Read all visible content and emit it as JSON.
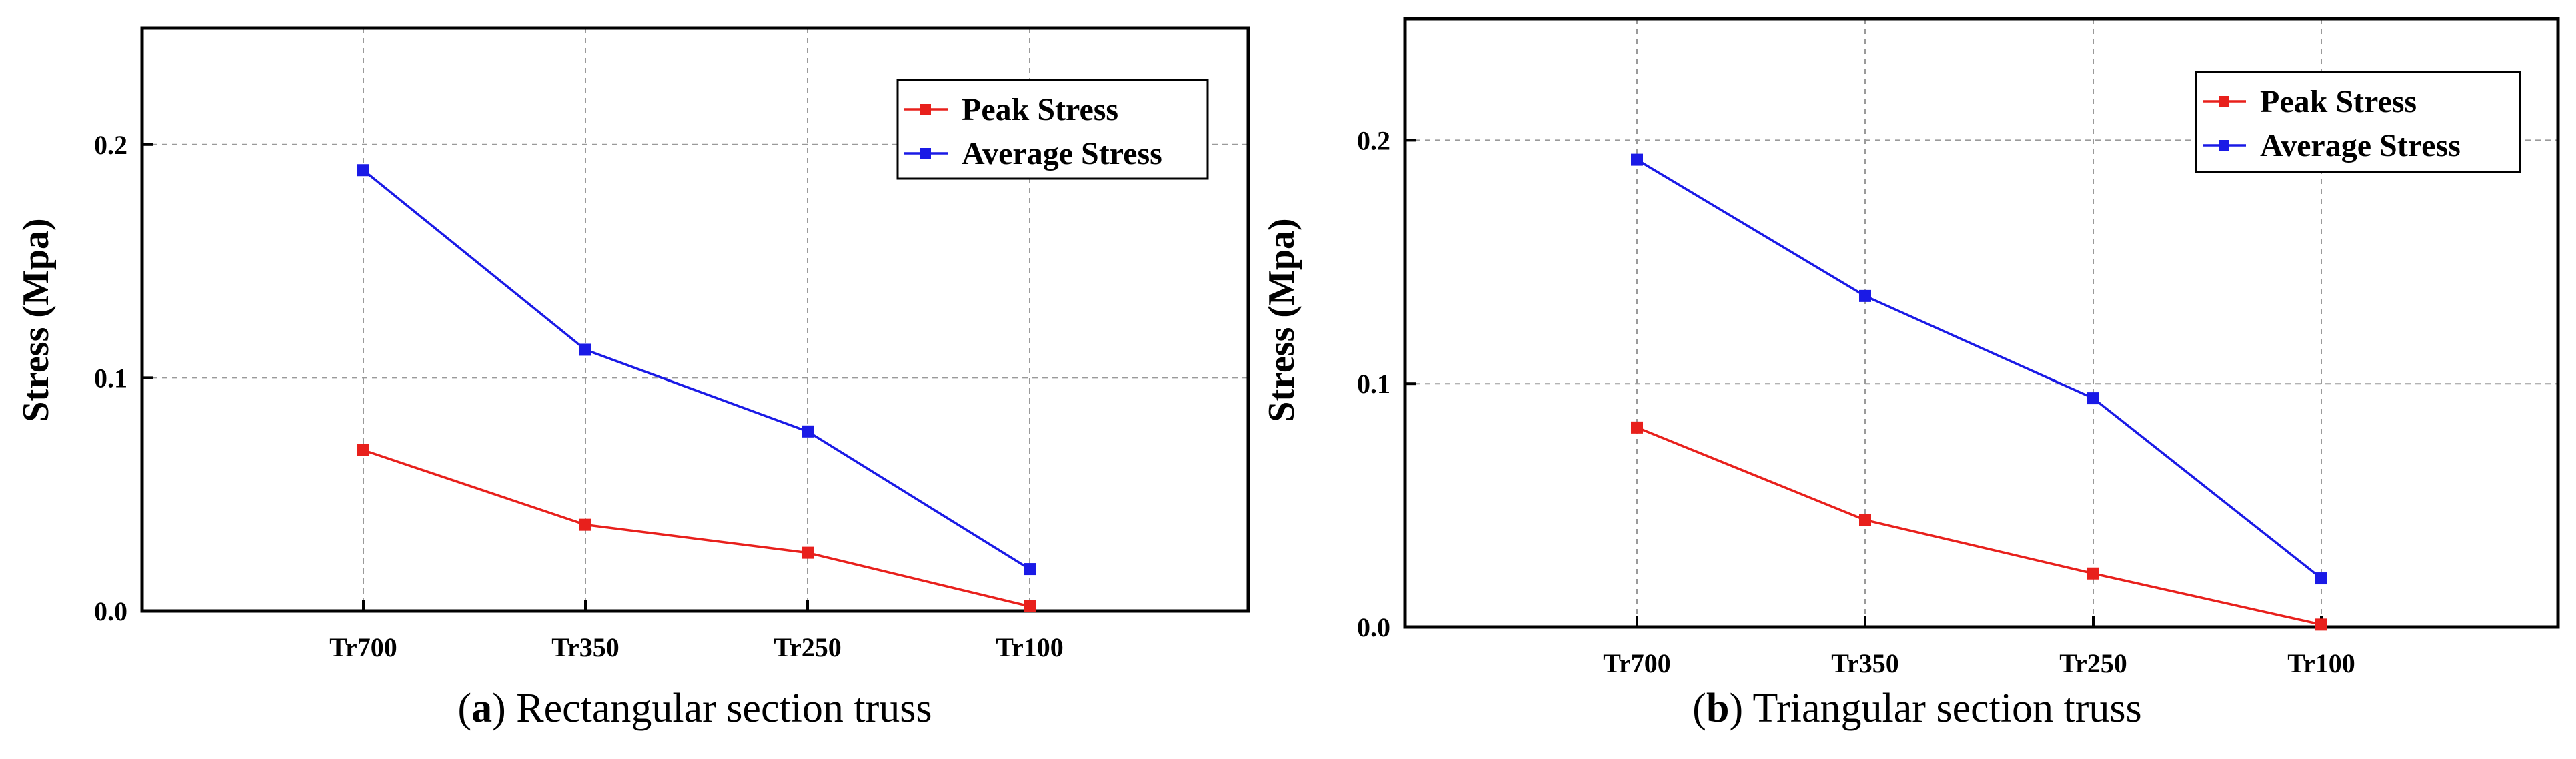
{
  "colors": {
    "peak": "#e8201c",
    "average": "#1a1ae6",
    "grid": "#9a9a9a",
    "axis": "#000000",
    "background": "#ffffff"
  },
  "chart_data": [
    {
      "type": "line",
      "panel": "a",
      "caption_tag": "a",
      "caption_text": "Rectangular section truss",
      "categories": [
        "Tr700",
        "Tr350",
        "Tr250",
        "Tr100"
      ],
      "series": [
        {
          "name": "Peak Stress",
          "color_key": "peak",
          "values": [
            0.069,
            0.037,
            0.025,
            0.002
          ]
        },
        {
          "name": "Average Stress",
          "color_key": "average",
          "values": [
            0.189,
            0.112,
            0.077,
            0.018
          ]
        }
      ],
      "ylabel": "Stress (Mpa)",
      "xlabel": "",
      "ylim": [
        0,
        0.25
      ],
      "yticks": [
        0.0,
        0.1,
        0.2
      ],
      "ytick_labels": [
        "0.0",
        "0.1",
        "0.2"
      ],
      "grid": true,
      "legend": "top-right"
    },
    {
      "type": "line",
      "panel": "b",
      "caption_tag": "b",
      "caption_text": "Triangular section truss",
      "categories": [
        "Tr700",
        "Tr350",
        "Tr250",
        "Tr100"
      ],
      "series": [
        {
          "name": "Peak Stress",
          "color_key": "peak",
          "values": [
            0.082,
            0.044,
            0.022,
            0.001
          ]
        },
        {
          "name": "Average Stress",
          "color_key": "average",
          "values": [
            0.192,
            0.136,
            0.094,
            0.02
          ]
        }
      ],
      "ylabel": "Stress (Mpa)",
      "xlabel": "",
      "ylim": [
        0,
        0.25
      ],
      "yticks": [
        0.0,
        0.1,
        0.2
      ],
      "ytick_labels": [
        "0.0",
        "0.1",
        "0.2"
      ],
      "grid": true,
      "legend": "top-right"
    }
  ]
}
